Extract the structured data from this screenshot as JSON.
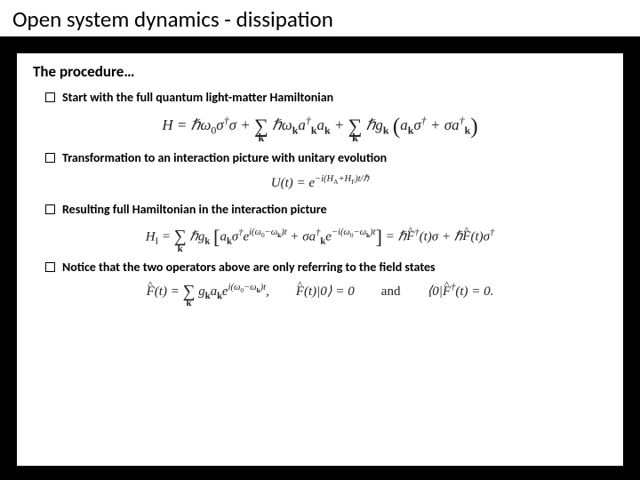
{
  "title": "Open system dynamics - dissipation",
  "subtitle": "The procedure…",
  "items": [
    {
      "text": "Start with the full quantum light-matter Hamiltonian"
    },
    {
      "text": "Transformation to an interaction picture with unitary evolution"
    },
    {
      "text": "Resulting full Hamiltonian in the interaction picture"
    },
    {
      "text": "Notice that the two operators above are only referring to the field states"
    }
  ],
  "equations": {
    "eq1_html": "H = ℏω<sub>0</sub>σ<sup>†</sup>σ + <span class='sum'>∑<span class='sum-sub'>k</span></span> ℏω<sub><b>k</b></sub>a<sup>†</sup><sub><b>k</b></sub>a<sub><b>k</b></sub> + <span class='sum'>∑<span class='sum-sub'>k</span></span> ℏg<sub><b>k</b></sub> <span class='big'>(</span>a<sub><b>k</b></sub>σ<sup>†</sup> + σa<sup>†</sup><sub><b>k</b></sub><span class='big'>)</span>",
    "eq2_html": "U(t) = e<sup>−i(H<sub>A</sub>+H<sub>F</sub>)t/ℏ</sup>",
    "eq3_html": "H<sub>I</sub> = <span class='sum'>∑<span class='sum-sub'>k</span></span> ℏg<sub><b>k</b></sub> <span class='big'>[</span>a<sub><b>k</b></sub>σ<sup>†</sup>e<sup>i(ω<sub>0</sub>−ω<sub><b>k</b></sub>)t</sup> + σa<sup>†</sup><sub><b>k</b></sub>e<sup>−i(ω<sub>0</sub>−ω<sub><b>k</b></sub>)t</sup><span class='big'>]</span> = ℏ<span class='hat'>F</span><sup>†</sup>(t)σ + ℏ<span class='hat'>F</span>(t)σ<sup>†</sup>",
    "eq4_html": "<span class='hat'>F</span>(t) = <span class='sum'>∑<span class='sum-sub'>k</span></span> g<sub><b>k</b></sub>a<sub><b>k</b></sub>e<sup>i(ω<sub>0</sub>−ω<sub><b>k</b></sub>)t</sup>,<span class='spacer'></span><span class='hat'>F</span>(t)|0⟩ = 0<span class='spacer'></span><span class='rm'>and</span><span class='spacer'></span>⟨0|<span class='hat'>F</span><sup>†</sup>(t) = 0."
  },
  "style": {
    "bg": "#000000",
    "panel_bg": "#ffffff",
    "title_fontsize": 25,
    "subtitle_fontsize": 17,
    "item_fontsize": 14,
    "eq_fontsize": 17
  }
}
